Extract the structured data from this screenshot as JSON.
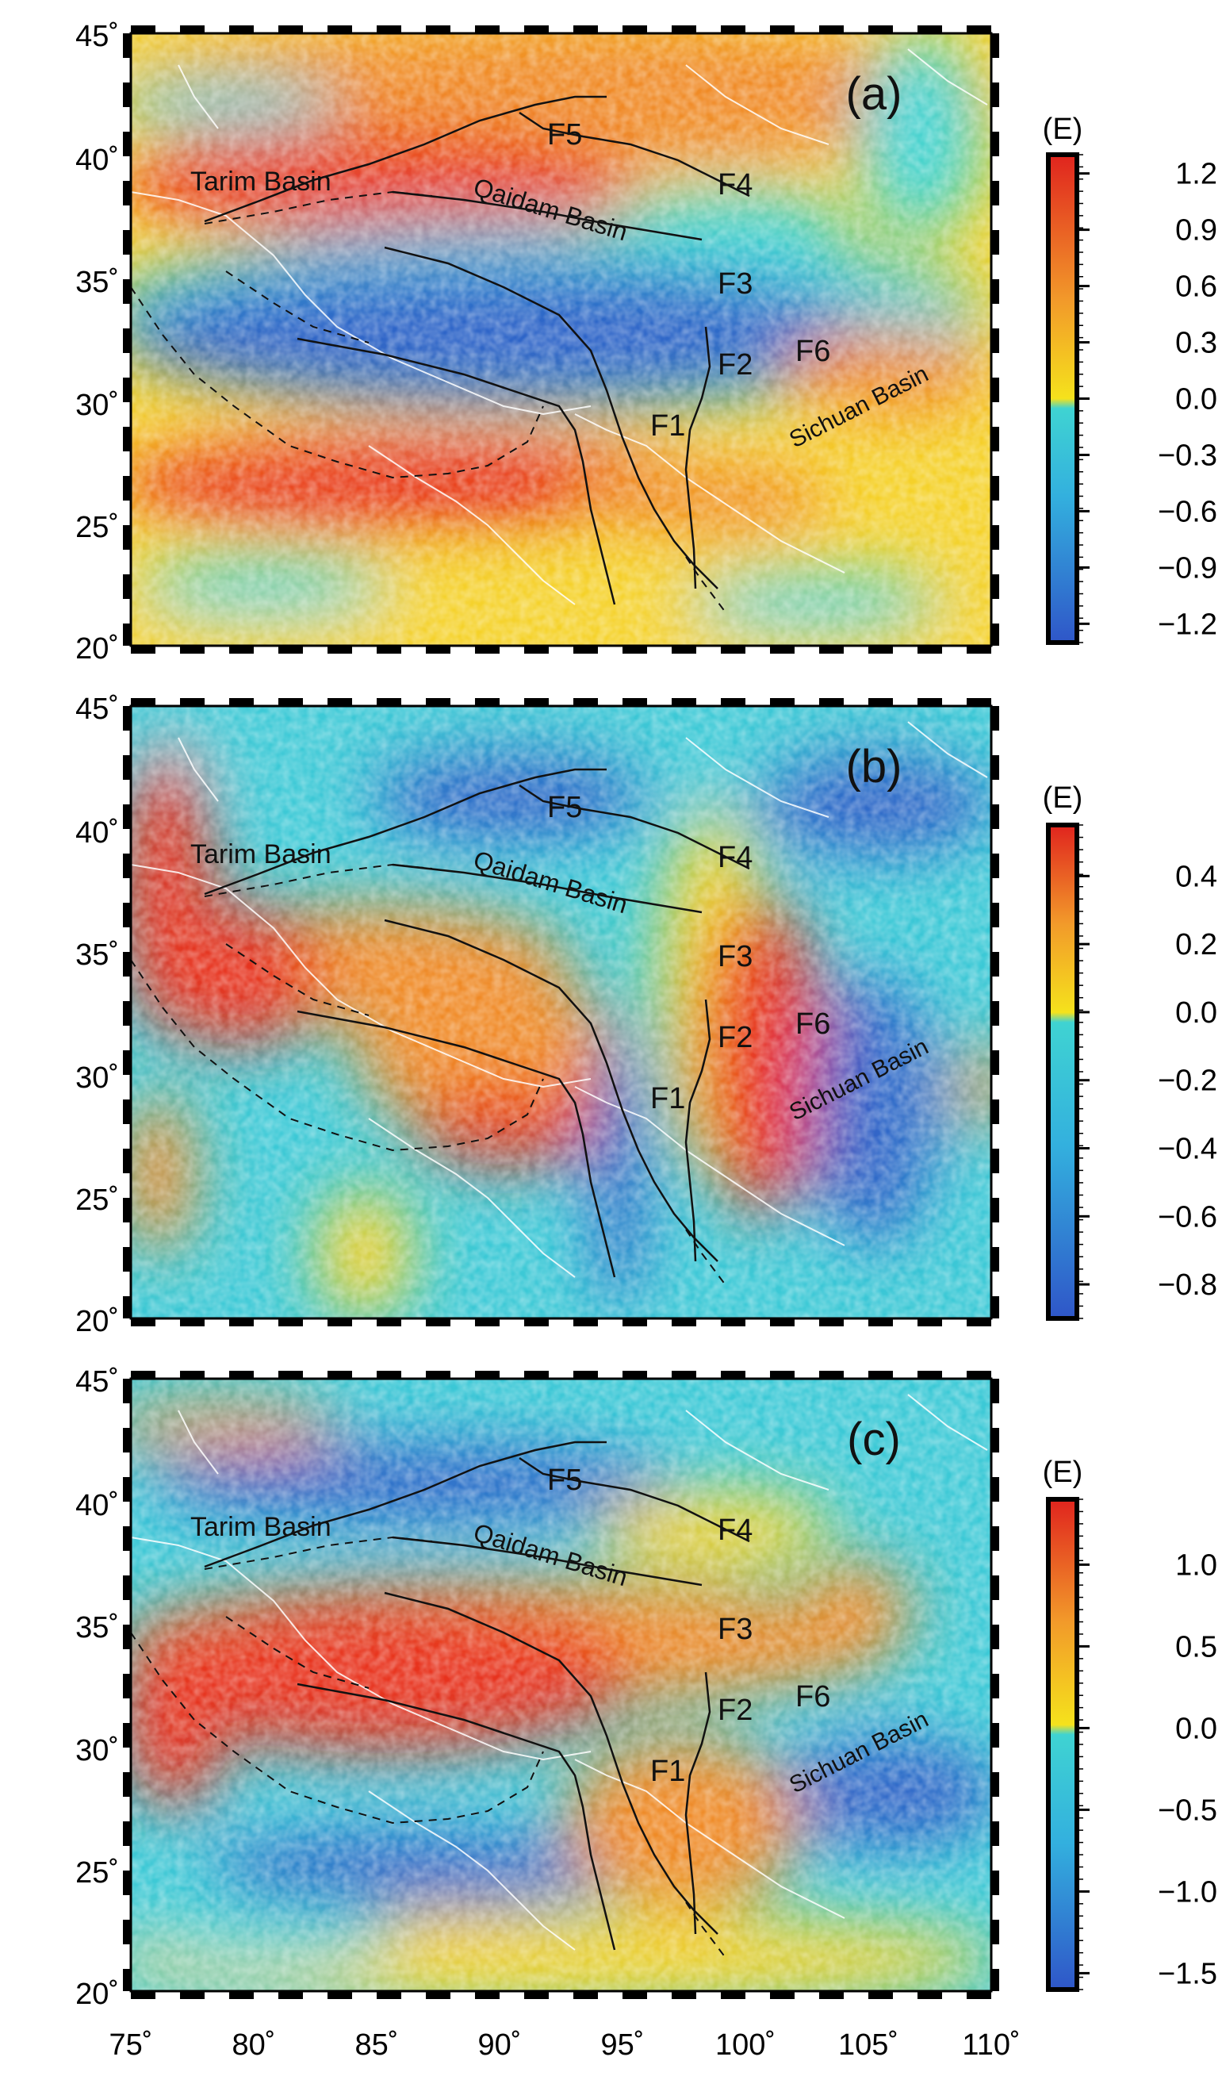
{
  "figure": {
    "lat_ticks": [
      "45˚",
      "40˚",
      "35˚",
      "30˚",
      "25˚",
      "20˚"
    ],
    "lon_ticks": [
      "75˚",
      "80˚",
      "85˚",
      "90˚",
      "95˚",
      "100˚",
      "105˚",
      "110˚"
    ],
    "lon_range": [
      75,
      110
    ],
    "lat_range": [
      20,
      45
    ]
  },
  "map_labels": {
    "tarim": "Tarim Basin",
    "qaidam": "Qaidam Basin",
    "sichuan": "Sichuan Basin",
    "faults": [
      "F1",
      "F2",
      "F3",
      "F4",
      "F5",
      "F6"
    ]
  },
  "panels": [
    {
      "letter": "(a)",
      "colorbar_unit": "(E)",
      "colorbar_ticks": [
        "1.2",
        "0.9",
        "0.6",
        "0.3",
        "0.0",
        "−0.3",
        "−0.6",
        "−0.9",
        "−1.2"
      ],
      "colorbar_range": [
        -1.3,
        1.3
      ]
    },
    {
      "letter": "(b)",
      "colorbar_unit": "(E)",
      "colorbar_ticks": [
        "0.4",
        "0.2",
        "0.0",
        "−0.2",
        "−0.4",
        "−0.6",
        "−0.8"
      ],
      "colorbar_range": [
        -0.9,
        0.55
      ]
    },
    {
      "letter": "(c)",
      "colorbar_unit": "(E)",
      "colorbar_ticks": [
        "1.0",
        "0.5",
        "0.0",
        "−0.5",
        "−1.0",
        "−1.5"
      ],
      "colorbar_range": [
        -1.6,
        1.4
      ]
    }
  ],
  "colors": {
    "high": "#e8321e",
    "mid_high": "#f39a2a",
    "zero": "#f5e21c",
    "mid_low": "#3cc9d6",
    "low": "#2f64c8"
  }
}
